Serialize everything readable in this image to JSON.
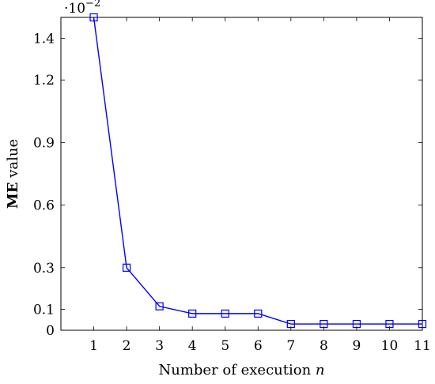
{
  "chart_data": {
    "type": "line",
    "x": [
      1,
      2,
      3,
      4,
      5,
      6,
      7,
      8,
      9,
      10,
      11
    ],
    "y": [
      1.5,
      0.3,
      0.115,
      0.08,
      0.08,
      0.08,
      0.03,
      0.03,
      0.03,
      0.03,
      0.03
    ],
    "xticks": [
      "1",
      "2",
      "3",
      "4",
      "5",
      "6",
      "7",
      "8",
      "9",
      "10",
      "11"
    ],
    "yticks": [
      0,
      0.1,
      0.3,
      0.6,
      0.9,
      1.2,
      1.4
    ],
    "ytick_labels": [
      "0",
      "0.1",
      "0.3",
      "0.6",
      "0.9",
      "1.2",
      "1.4"
    ],
    "xlim": [
      0,
      11
    ],
    "ylim": [
      0,
      1.5
    ],
    "xlabel": "Number of execution",
    "xlabel_var": "n",
    "ylabel_bold": "ME",
    "ylabel_rest": " value",
    "scale_base": "·10",
    "scale_exp": "−2",
    "line_color": "#0000ff",
    "marker": "square",
    "grid": false
  }
}
